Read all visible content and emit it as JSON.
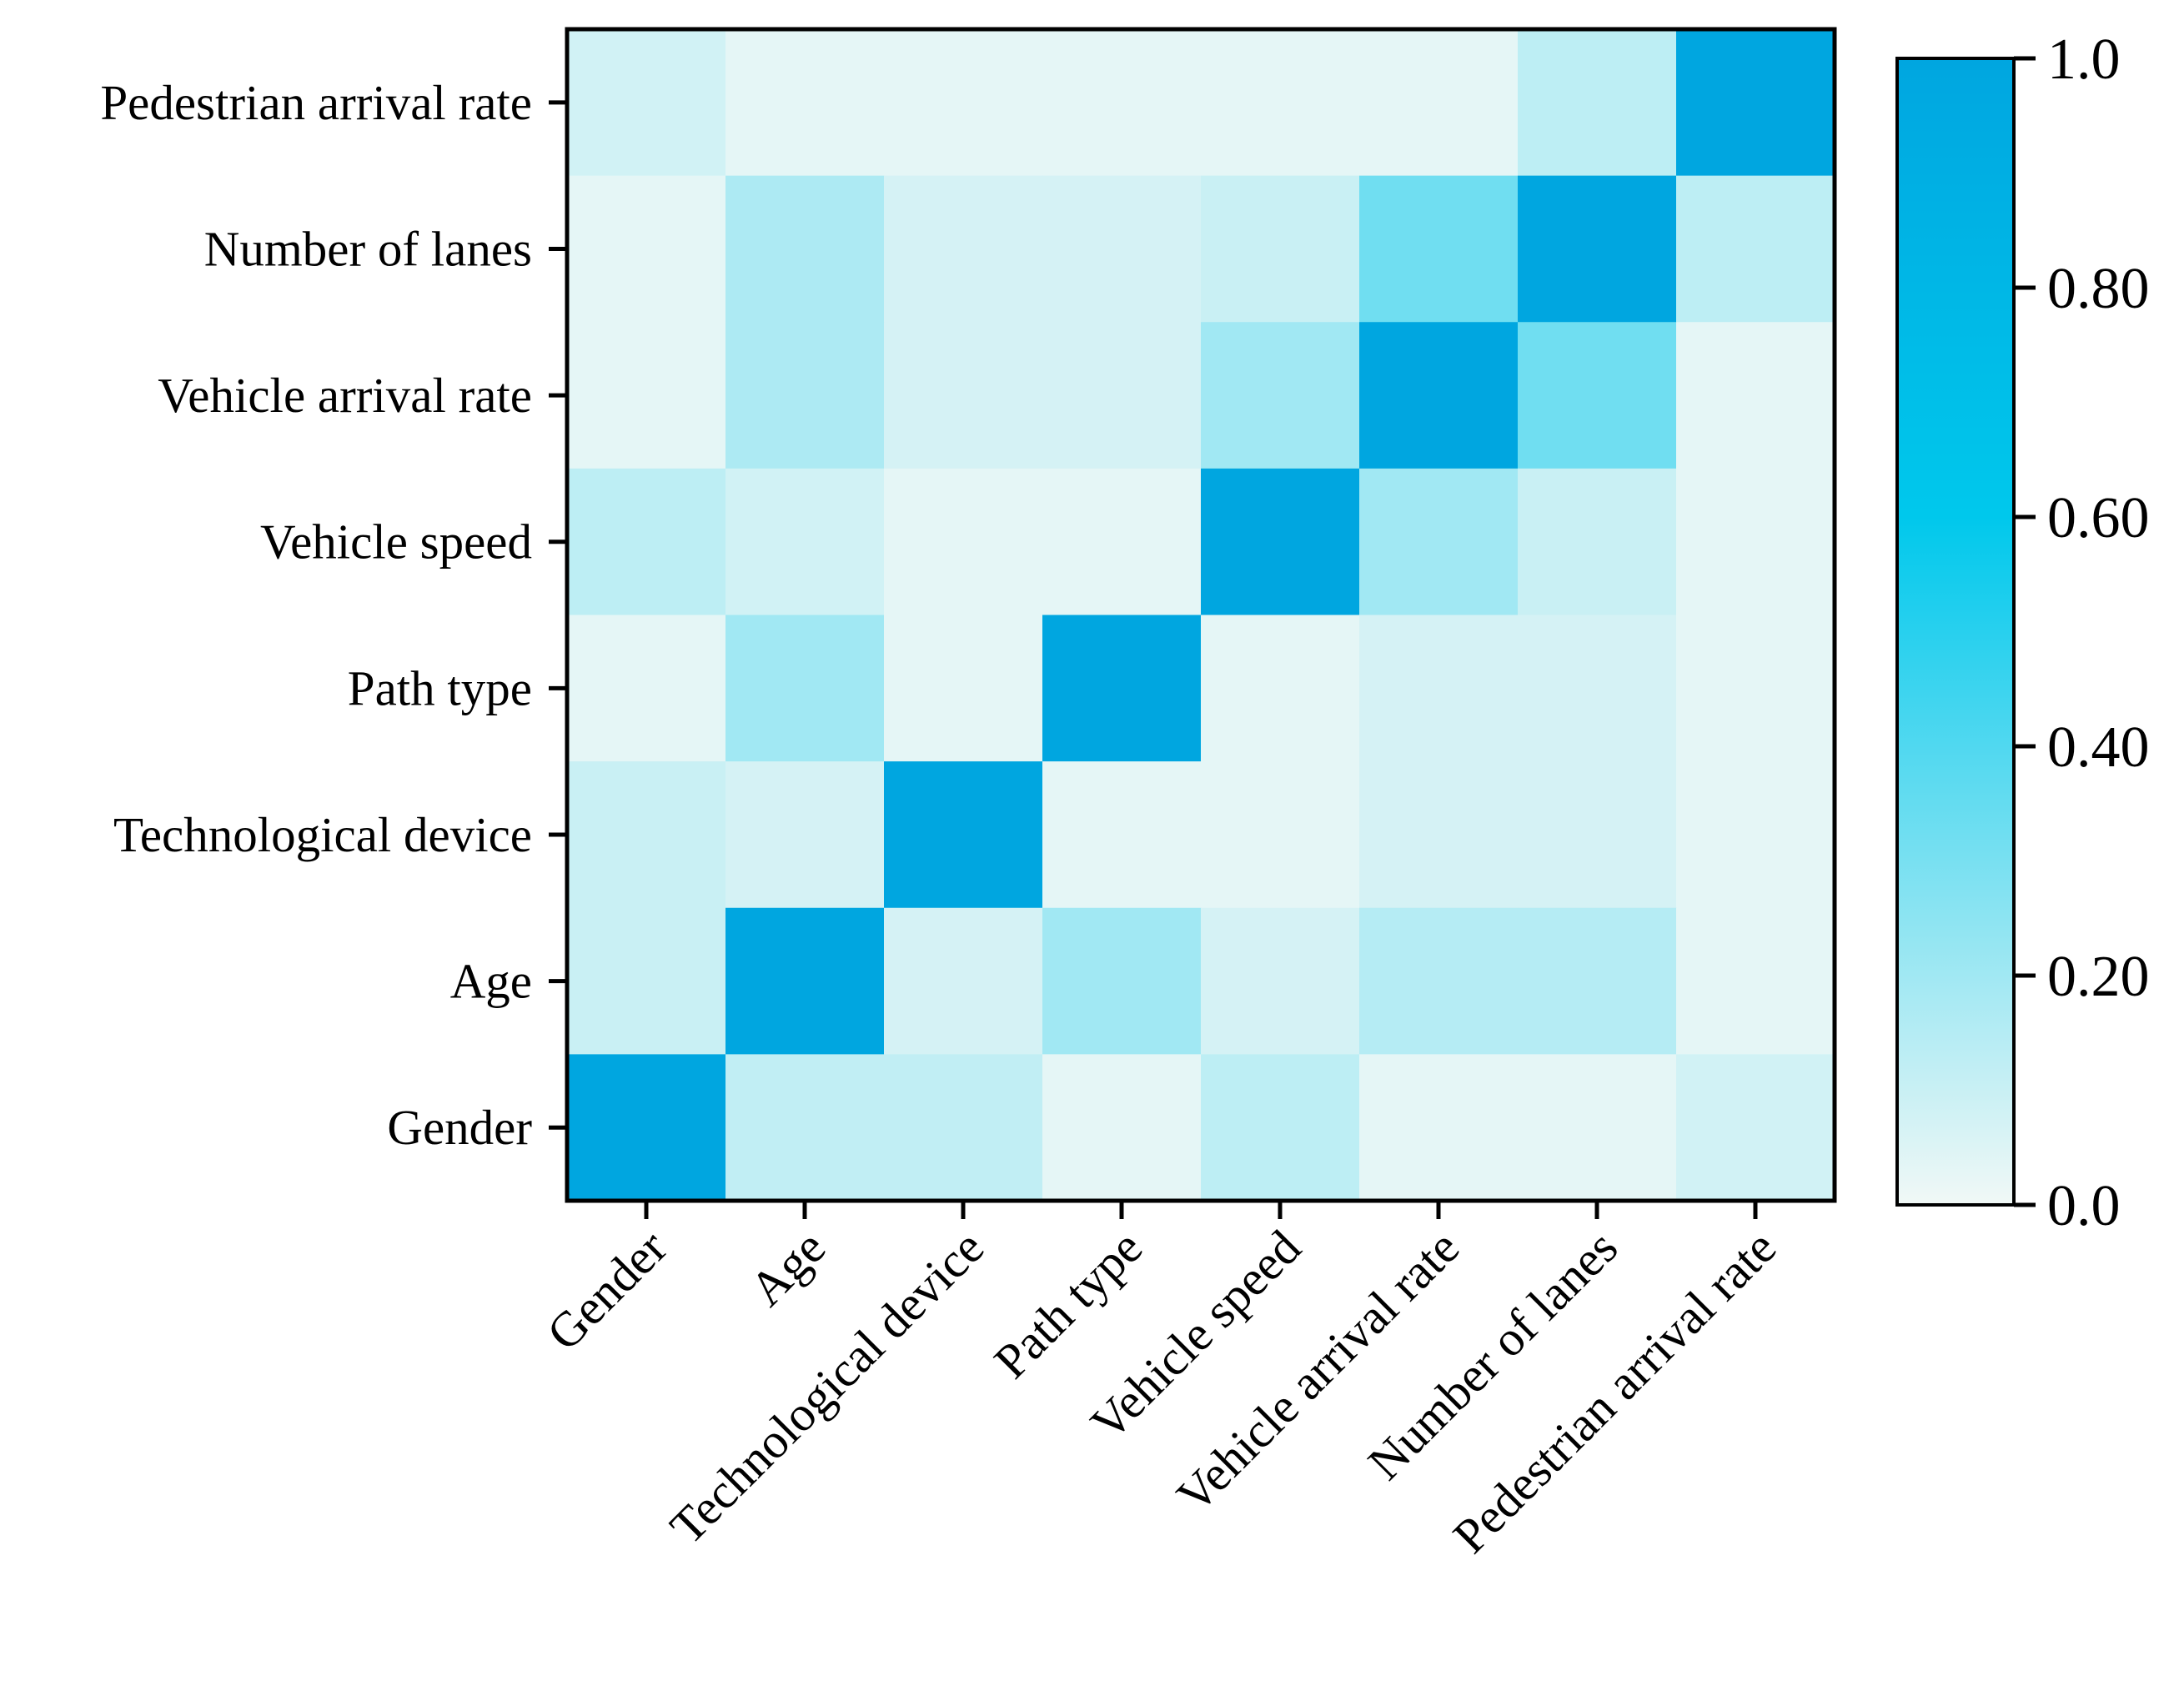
{
  "chart_data": {
    "type": "heatmap",
    "title": "",
    "xlabel": "",
    "ylabel": "",
    "x_labels": [
      "Gender",
      "Age",
      "Technological device",
      "Path type",
      "Vehicle speed",
      "Vehicle arrival rate",
      "Number of lanes",
      "Pedestrian arrival rate"
    ],
    "y_labels_top_to_bottom": [
      "Pedestrian arrival rate",
      "Number of lanes",
      "Vehicle arrival rate",
      "Vehicle speed",
      "Path type",
      "Technological device",
      "Age",
      "Gender"
    ],
    "matrix_top_to_bottom": [
      [
        0.08,
        0.03,
        0.03,
        0.03,
        0.03,
        0.03,
        0.13,
        1.0
      ],
      [
        0.03,
        0.17,
        0.07,
        0.07,
        0.1,
        0.32,
        1.0,
        0.13
      ],
      [
        0.03,
        0.17,
        0.07,
        0.07,
        0.2,
        1.0,
        0.32,
        0.03
      ],
      [
        0.13,
        0.08,
        0.03,
        0.03,
        1.0,
        0.2,
        0.1,
        0.03
      ],
      [
        0.03,
        0.2,
        0.03,
        1.0,
        0.03,
        0.07,
        0.07,
        0.03
      ],
      [
        0.1,
        0.07,
        1.0,
        0.03,
        0.03,
        0.07,
        0.07,
        0.03
      ],
      [
        0.1,
        1.0,
        0.07,
        0.2,
        0.07,
        0.15,
        0.15,
        0.03
      ],
      [
        1.0,
        0.12,
        0.12,
        0.03,
        0.13,
        0.03,
        0.03,
        0.08
      ]
    ],
    "colorbar": {
      "min": 0.0,
      "max": 1.0,
      "tick_values": [
        0.0,
        0.2,
        0.4,
        0.6,
        0.8,
        1.0
      ],
      "tick_labels": [
        "0.0",
        "0.20",
        "0.40",
        "0.60",
        "0.80",
        "1.0"
      ],
      "color_low": "#f1f8f6",
      "color_mid": "#00c8ec",
      "color_high": "#00a6e0"
    }
  }
}
